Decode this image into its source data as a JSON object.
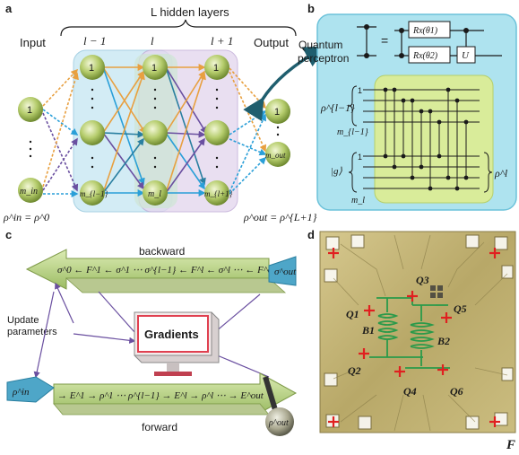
{
  "panels": {
    "a": "a",
    "b": "b",
    "c": "c",
    "d": "d"
  },
  "panel_a": {
    "hidden_layers": "L hidden layers",
    "input": "Input",
    "output": "Output",
    "layer_prev": "l − 1",
    "layer_cur": "l",
    "layer_next": "l + 1",
    "node_one": "1",
    "node_m_in": "m_in",
    "node_m_out": "m_out",
    "node_m_prev": "m_{l−1}",
    "node_m_cur": "m_l",
    "node_m_next": "m_{l+1}",
    "rho_in_eq": "ρ^in = ρ^0",
    "rho_out_eq": "ρ^out = ρ^{L+1}"
  },
  "panel_b": {
    "quantum_perceptron": "Quantum perceptron",
    "gate_rx1": "Rx(θ1)",
    "gate_rx2": "Rx(θ2)",
    "gate_u": "U",
    "equals": "=",
    "rho_prev": "ρ^{l−1}",
    "m_prev": "m_{l−1}",
    "ket_g": "|g⟩",
    "m_l": "m_l",
    "rho_l": "ρ^l",
    "one_a": "1",
    "one_b": "1"
  },
  "panel_c": {
    "backward": "backward",
    "forward": "forward",
    "update_parameters": "Update parameters",
    "gradients": "Gradients",
    "sigma_out": "σ^out",
    "rho_in": "ρ^in",
    "rho_out": "ρ^out",
    "back_seq": "σ^0 ← F^1 ← σ^1 ⋯ σ^{l−1} ← F^l ← σ^l ⋯ ← F^out",
    "fwd_seq": "→ E^1 → ρ^1 ⋯ ρ^{l−1} → E^l → ρ^l ⋯ → E^out"
  },
  "panel_d": {
    "qubits": [
      "Q1",
      "Q2",
      "Q3",
      "Q4",
      "Q5",
      "Q6"
    ],
    "buses": [
      "B1",
      "B2"
    ]
  },
  "corner_letter": "F",
  "colors": {
    "node_green": "#a8c060",
    "orange_arrow": "#e8a040",
    "blue_arrow": "#2a9fd8",
    "purple_arrow": "#6a4fa0",
    "teal_arrow": "#2a7fa0",
    "panel_b_bg": "#aee3ef",
    "green_box": "#d9ec9a",
    "arrow_band": "#b8d68a",
    "qubit_red": "#e02020",
    "chip_gold": "#c8b878"
  }
}
